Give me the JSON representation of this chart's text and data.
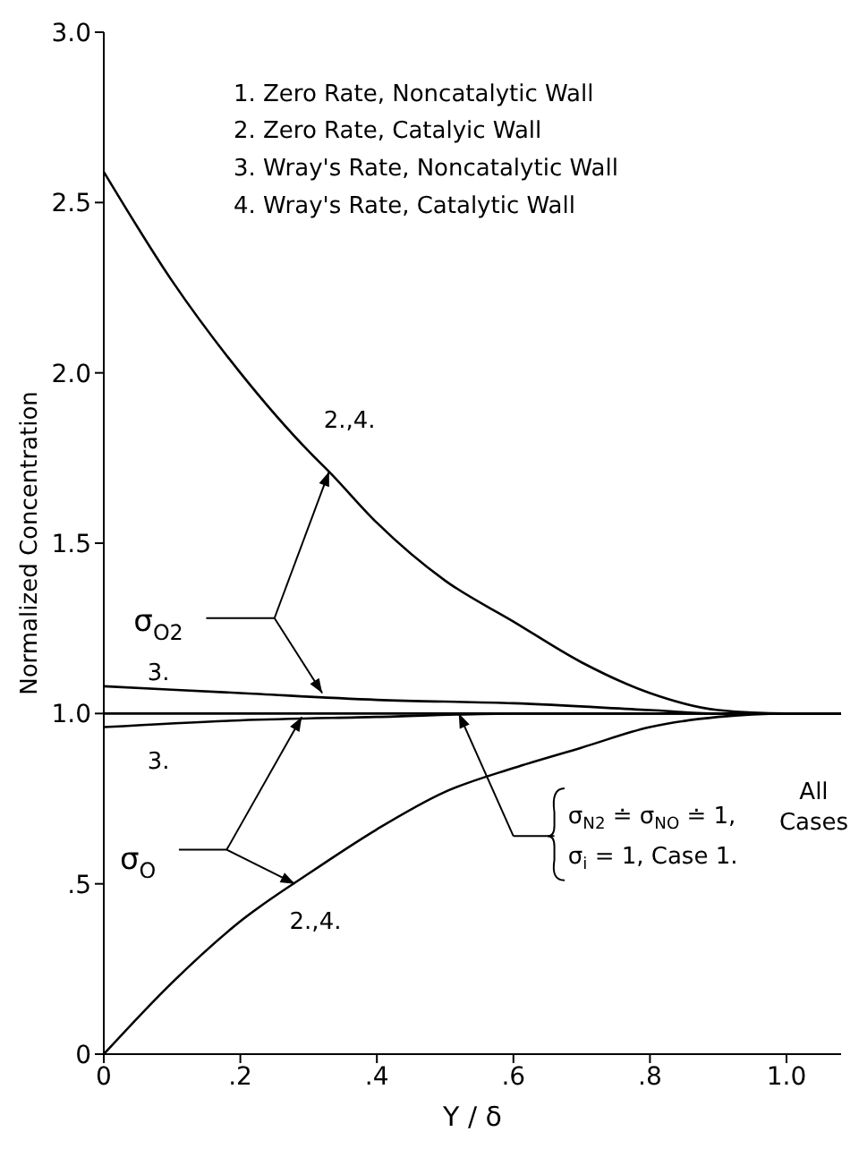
{
  "chart_data": {
    "type": "line",
    "xlabel": "Y / δ",
    "ylabel": "Normalized  Concentration",
    "xlim": [
      0,
      1.08
    ],
    "ylim": [
      0,
      3
    ],
    "xticks": [
      0,
      {
        "value": 0.2,
        "label": ".2"
      },
      {
        "value": 0.4,
        "label": ".4"
      },
      {
        "value": 0.6,
        "label": ".6"
      },
      {
        "value": 0.8,
        "label": ".8"
      },
      {
        "value": 1,
        "label": "1.0"
      }
    ],
    "yticks": [
      0,
      {
        "value": 0.5,
        "label": ".5"
      },
      {
        "value": 1,
        "label": "1.0"
      },
      {
        "value": 1.5,
        "label": "1.5"
      },
      {
        "value": 2,
        "label": "2.0"
      },
      {
        "value": 2.5,
        "label": "2.5"
      },
      {
        "value": 3,
        "label": "3.0"
      }
    ],
    "marker": "none",
    "line_style": "solid",
    "series": [
      {
        "color": "#000000",
        "x": [
          0,
          0.1,
          0.2,
          0.3,
          0.33,
          0.4,
          0.5,
          0.6,
          0.7,
          0.8,
          0.9,
          1.0,
          1.08
        ],
        "values": [
          2.59,
          2.27,
          2.0,
          1.77,
          1.71,
          1.56,
          1.39,
          1.27,
          1.15,
          1.06,
          1.01,
          1.0,
          1.0
        ]
      },
      {
        "color": "#000000",
        "x": [
          0,
          0.2,
          0.4,
          0.6,
          0.8,
          0.9,
          1.0,
          1.08
        ],
        "values": [
          1.08,
          1.06,
          1.04,
          1.03,
          1.01,
          1.0,
          1.0,
          1.0
        ]
      },
      {
        "color": "#000000",
        "x": [
          0,
          1.08
        ],
        "values": [
          1.0,
          1.0
        ]
      },
      {
        "color": "#000000",
        "x": [
          0,
          0.2,
          0.4,
          0.6,
          0.8,
          1.0,
          1.08
        ],
        "values": [
          0.96,
          0.98,
          0.99,
          1.0,
          1.0,
          1.0,
          1.0
        ]
      },
      {
        "color": "#000000",
        "x": [
          0,
          0.1,
          0.2,
          0.3,
          0.4,
          0.5,
          0.6,
          0.7,
          0.8,
          0.9,
          1.0,
          1.08
        ],
        "values": [
          0,
          0.21,
          0.39,
          0.53,
          0.66,
          0.77,
          0.84,
          0.9,
          0.96,
          0.99,
          1.0,
          1.0
        ]
      }
    ],
    "annotations": [
      "1.  Zero Rate, Noncatalytic Wall",
      "2.  Zero Rate, Catalyic Wall",
      "3.  Wray's Rate, Noncatalytic Wall",
      "4.  Wray's Rate, Catalytic Wall",
      "2.,4.",
      "σ$_{O2}$",
      "3.",
      "3.",
      "σ$_{O}$",
      "2.,4.",
      "σ$_{N2}$ ≐ σ$_{NO}$ ≐ 1,",
      "σ$_{i}$ = 1, Case 1.",
      "All",
      "Cases"
    ]
  }
}
